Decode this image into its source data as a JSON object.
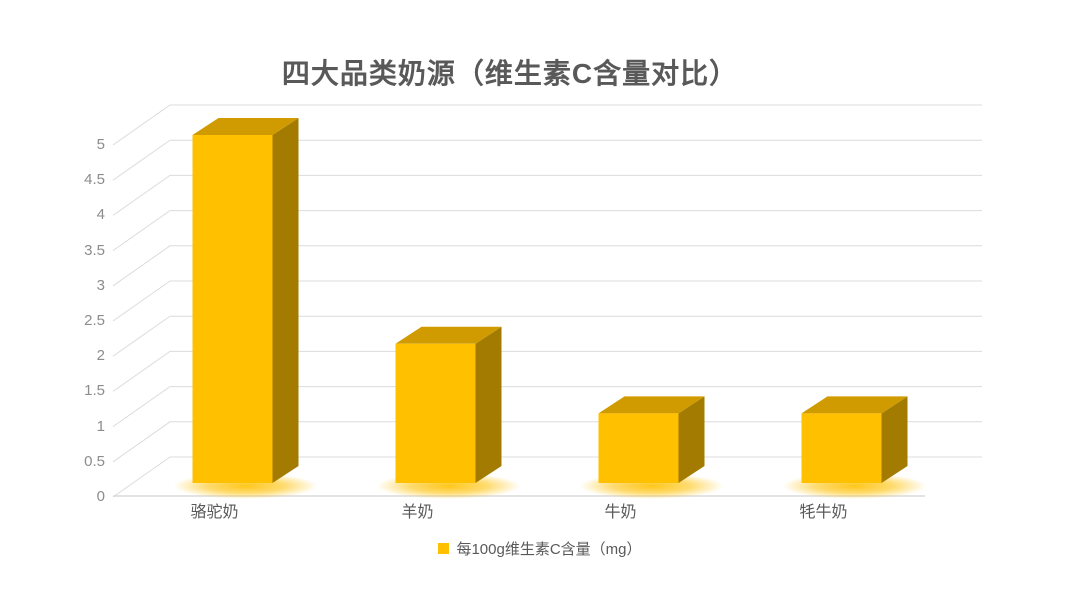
{
  "title": "四大品类奶源（维生素C含量对比）",
  "legend": {
    "label": "每100g维生素C含量（mg）",
    "marker_color": "#FFC000"
  },
  "colors": {
    "title_text": "#595959",
    "axis_text": "#8C8C8C",
    "category_text": "#595959",
    "legend_text": "#595959",
    "grid_line": "#DCDCDC",
    "baseline": "#D2D2D2",
    "bar_front": "#FFC000",
    "bar_top": "#D09B00",
    "bar_side": "#A27B00",
    "bar_glow": "#FFC000"
  },
  "chart_data": {
    "type": "bar",
    "style": "3d-column",
    "title": "四大品类奶源（维生素C含量对比）",
    "categories": [
      "骆驼奶",
      "羊奶",
      "牛奶",
      "牦牛奶"
    ],
    "series": [
      {
        "name": "每100g维生素C含量（mg）",
        "values": [
          5,
          2,
          1,
          1
        ]
      }
    ],
    "xlabel": "",
    "ylabel": "",
    "ylim": [
      0,
      5
    ],
    "ytick_step": 0.5,
    "ytick_labels": [
      "0",
      "0.5",
      "1",
      "1.5",
      "2",
      "2.5",
      "3",
      "3.5",
      "4",
      "4.5",
      "5"
    ],
    "grid": true,
    "legend_position": "bottom"
  }
}
